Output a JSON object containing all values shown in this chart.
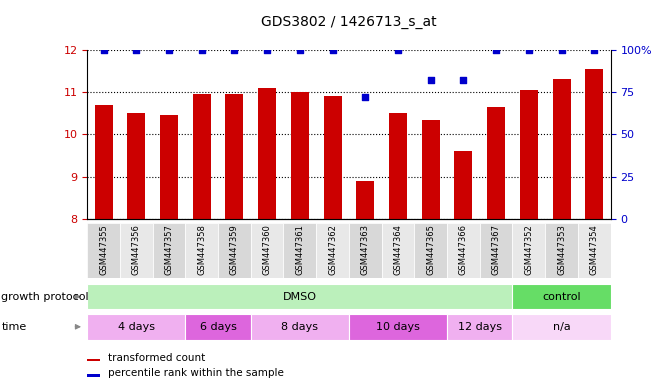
{
  "title": "GDS3802 / 1426713_s_at",
  "samples": [
    "GSM447355",
    "GSM447356",
    "GSM447357",
    "GSM447358",
    "GSM447359",
    "GSM447360",
    "GSM447361",
    "GSM447362",
    "GSM447363",
    "GSM447364",
    "GSM447365",
    "GSM447366",
    "GSM447367",
    "GSM447352",
    "GSM447353",
    "GSM447354"
  ],
  "bar_values": [
    10.7,
    10.5,
    10.45,
    10.95,
    10.95,
    11.1,
    11.0,
    10.9,
    8.9,
    10.5,
    10.35,
    9.6,
    10.65,
    11.05,
    11.3,
    11.55
  ],
  "percentile_values": [
    100,
    100,
    100,
    100,
    100,
    100,
    100,
    100,
    72,
    100,
    82,
    82,
    100,
    100,
    100,
    100
  ],
  "bar_color": "#cc0000",
  "percentile_color": "#0000cc",
  "ylim_left": [
    8,
    12
  ],
  "ylim_right": [
    0,
    100
  ],
  "yticks_left": [
    8,
    9,
    10,
    11,
    12
  ],
  "yticks_right": [
    0,
    25,
    50,
    75,
    100
  ],
  "growth_protocol_groups": [
    {
      "label": "DMSO",
      "start": 0,
      "end": 13,
      "color": "#bbf0bb"
    },
    {
      "label": "control",
      "start": 13,
      "end": 16,
      "color": "#66dd66"
    }
  ],
  "time_groups": [
    {
      "label": "4 days",
      "start": 0,
      "end": 3,
      "color": "#f0b0f0"
    },
    {
      "label": "6 days",
      "start": 3,
      "end": 5,
      "color": "#dd66dd"
    },
    {
      "label": "8 days",
      "start": 5,
      "end": 8,
      "color": "#f0b0f0"
    },
    {
      "label": "10 days",
      "start": 8,
      "end": 11,
      "color": "#dd66dd"
    },
    {
      "label": "12 days",
      "start": 11,
      "end": 13,
      "color": "#f0b0f0"
    },
    {
      "label": "n/a",
      "start": 13,
      "end": 16,
      "color": "#f8d8f8"
    }
  ],
  "legend_items": [
    {
      "label": "transformed count",
      "color": "#cc0000"
    },
    {
      "label": "percentile rank within the sample",
      "color": "#0000cc"
    }
  ],
  "background_color": "#ffffff",
  "tick_label_color_left": "#cc0000",
  "tick_label_color_right": "#0000cc"
}
